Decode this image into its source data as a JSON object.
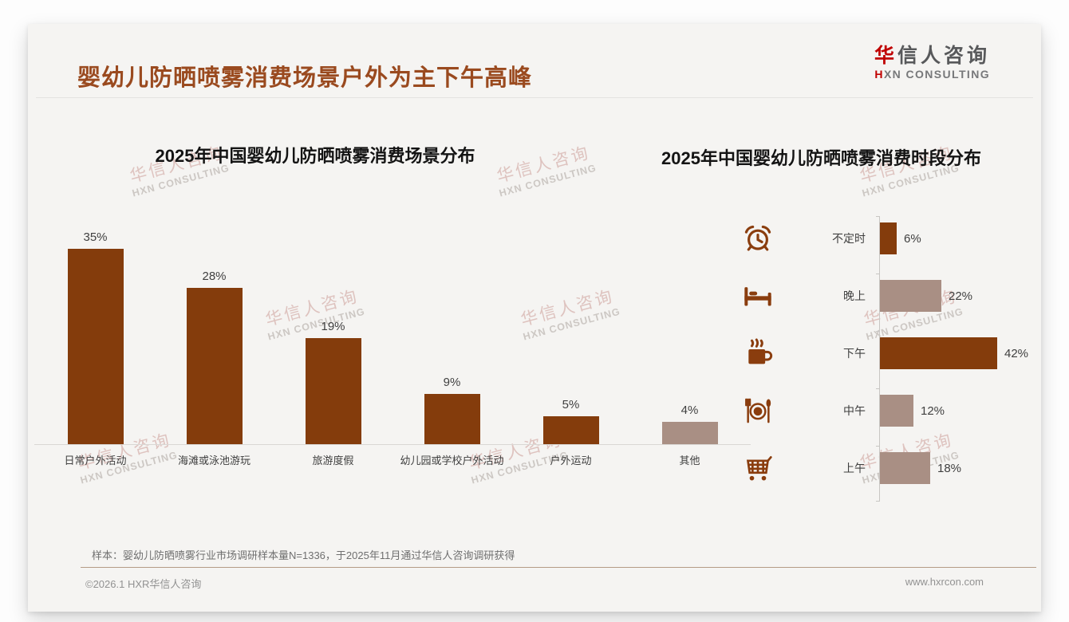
{
  "colors": {
    "title_brown": "#9A4A1F",
    "bar_dark": "#843C0C",
    "bar_muted": "#A98F84",
    "logo_red": "#C00000",
    "icon_brown": "#8A3D0E",
    "divider_tan": "#B49B86"
  },
  "header": {
    "title": "婴幼儿防晒喷雾消费场景户外为主下午高峰",
    "logo_cn_accent": "华",
    "logo_cn_rest": "信人咨询",
    "logo_en_accent": "H",
    "logo_en_rest": "XN CONSULTING"
  },
  "watermark": {
    "line1": "华信人咨询",
    "line2": "HXN CONSULTING"
  },
  "footnote": "样本：婴幼儿防晒喷雾行业市场调研样本量N=1336，于2025年11月通过华信人咨询调研获得",
  "footer": {
    "copyright": "©2026.1 HXR华信人咨询",
    "website": "www.hxrcon.com"
  },
  "chart_data": [
    {
      "type": "bar",
      "title": "2025年中国婴幼儿防晒喷雾消费场景分布",
      "categories": [
        "日常户外活动",
        "海滩或泳池游玩",
        "旅游度假",
        "幼儿园或学校户外活动",
        "户外运动",
        "其他"
      ],
      "values": [
        35,
        28,
        19,
        9,
        5,
        4
      ],
      "unit": "%",
      "value_labels": [
        "35%",
        "28%",
        "19%",
        "9%",
        "5%",
        "4%"
      ],
      "bar_palette": [
        "dark",
        "dark",
        "dark",
        "dark",
        "dark",
        "muted"
      ],
      "xlabel": "",
      "ylabel": "",
      "ylim": [
        0,
        35
      ],
      "grid": false,
      "legend": "none"
    },
    {
      "type": "bar-horizontal",
      "title": "2025年中国婴幼儿防晒喷雾消费时段分布",
      "categories": [
        "不定时",
        "晚上",
        "下午",
        "中午",
        "上午"
      ],
      "values": [
        6,
        22,
        42,
        12,
        18
      ],
      "unit": "%",
      "value_labels": [
        "6%",
        "22%",
        "42%",
        "12%",
        "18%"
      ],
      "bar_palette": [
        "dark",
        "muted",
        "dark",
        "muted",
        "muted"
      ],
      "icons": [
        "alarm-clock-icon",
        "bed-icon",
        "coffee-icon",
        "dining-icon",
        "shopping-cart-icon"
      ],
      "xlabel": "",
      "ylabel": "",
      "xlim": [
        0,
        42
      ],
      "grid": false,
      "legend": "none"
    }
  ]
}
